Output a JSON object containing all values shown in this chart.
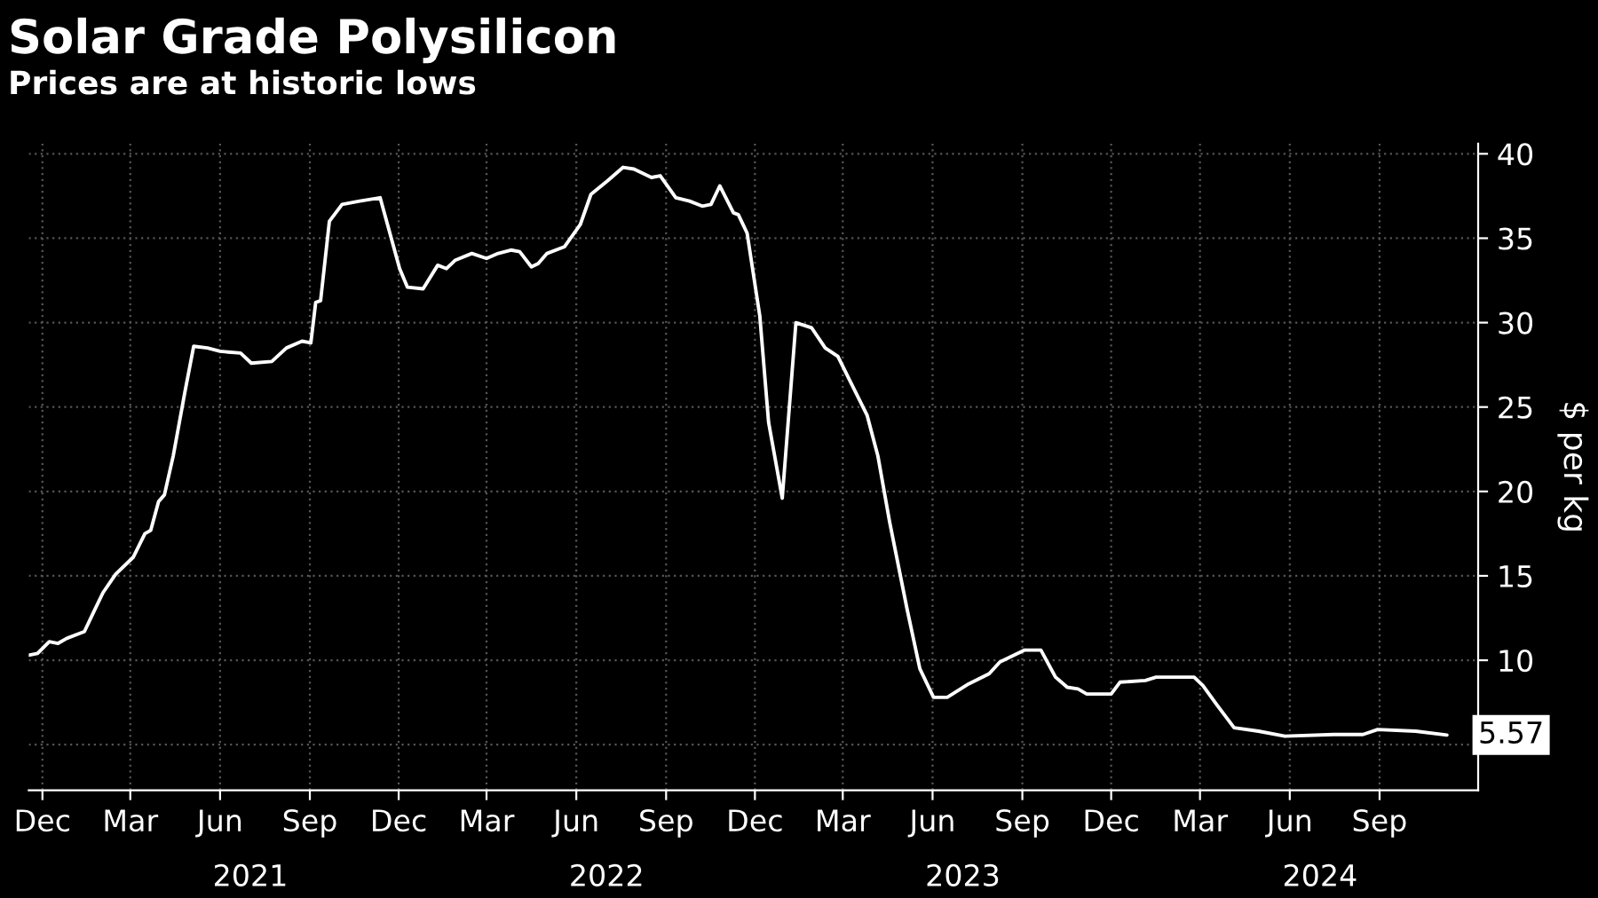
{
  "chart_data": {
    "type": "line",
    "title": "Solar Grade Polysilicon",
    "subtitle": "Prices are at historic lows",
    "ylabel": "$ per kg",
    "x": [
      "2020-11-17",
      "2020-11-26",
      "2020-12-08",
      "2020-12-17",
      "2020-12-26",
      "2021-01-13",
      "2021-01-22",
      "2021-02-01",
      "2021-02-14",
      "2021-03-04",
      "2021-03-16",
      "2021-03-22",
      "2021-03-30",
      "2021-04-05",
      "2021-04-14",
      "2021-04-26",
      "2021-05-05",
      "2021-05-19",
      "2021-06-01",
      "2021-06-22",
      "2021-07-03",
      "2021-07-24",
      "2021-08-08",
      "2021-08-24",
      "2021-09-02",
      "2021-09-07",
      "2021-09-12",
      "2021-09-21",
      "2021-10-04",
      "2021-10-22",
      "2021-11-12",
      "2021-12-02",
      "2021-12-10",
      "2021-12-26",
      "2022-01-10",
      "2022-01-19",
      "2022-01-28",
      "2022-02-14",
      "2022-03-01",
      "2022-03-13",
      "2022-03-26",
      "2022-04-04",
      "2022-04-16",
      "2022-04-23",
      "2022-05-02",
      "2022-05-20",
      "2022-06-05",
      "2022-06-16",
      "2022-07-03",
      "2022-07-19",
      "2022-07-30",
      "2022-08-17",
      "2022-08-26",
      "2022-09-11",
      "2022-09-25",
      "2022-10-08",
      "2022-10-17",
      "2022-10-26",
      "2022-11-09",
      "2022-11-14",
      "2022-11-23",
      "2022-12-06",
      "2022-12-15",
      "2022-12-29",
      "2023-01-12",
      "2023-01-28",
      "2023-02-11",
      "2023-02-24",
      "2023-03-08",
      "2023-03-26",
      "2023-04-06",
      "2023-04-18",
      "2023-05-06",
      "2023-05-19",
      "2023-06-02",
      "2023-06-16",
      "2023-07-08",
      "2023-07-29",
      "2023-08-09",
      "2023-09-03",
      "2023-09-20",
      "2023-10-05",
      "2023-10-17",
      "2023-10-28",
      "2023-11-06",
      "2023-12-01",
      "2023-12-10",
      "2024-01-05",
      "2024-01-16",
      "2024-02-24",
      "2024-03-04",
      "2024-03-19",
      "2024-04-05",
      "2024-04-30",
      "2024-05-27",
      "2024-07-16",
      "2024-08-15",
      "2024-08-30",
      "2024-10-08",
      "2024-11-09"
    ],
    "series": [
      {
        "color": "#ffffff",
        "values": [
          10.3,
          10.4,
          11.1,
          11.0,
          11.3,
          11.7,
          12.8,
          14.0,
          15.1,
          16.1,
          17.5,
          17.7,
          19.4,
          19.8,
          22.1,
          25.9,
          28.6,
          28.5,
          28.3,
          28.2,
          27.6,
          27.7,
          28.5,
          28.9,
          28.8,
          31.2,
          31.3,
          36.0,
          37.0,
          37.2,
          37.4,
          33.2,
          32.1,
          32.0,
          33.4,
          33.2,
          33.7,
          34.1,
          33.8,
          34.1,
          34.3,
          34.2,
          33.3,
          33.5,
          34.1,
          34.5,
          35.8,
          37.6,
          38.4,
          39.2,
          39.1,
          38.6,
          38.7,
          37.4,
          37.2,
          36.9,
          37.0,
          38.1,
          36.5,
          36.4,
          35.3,
          30.4,
          24.1,
          19.6,
          30.0,
          29.7,
          28.5,
          28.0,
          26.6,
          24.5,
          22.1,
          18.2,
          13.0,
          9.5,
          7.8,
          7.8,
          8.6,
          9.2,
          9.9,
          10.6,
          10.6,
          9.0,
          8.4,
          8.3,
          8.0,
          8.0,
          8.7,
          8.8,
          9.0,
          9.0,
          8.5,
          7.3,
          6.0,
          5.8,
          5.5,
          5.6,
          5.6,
          5.9,
          5.8,
          5.57
        ]
      }
    ],
    "xlim": [
      "2020-11-17",
      "2024-12-11"
    ],
    "xticks": [
      {
        "value": "2020-12-01",
        "label": "Dec"
      },
      {
        "value": "2021-03-01",
        "label": "Mar"
      },
      {
        "value": "2021-06-01",
        "label": "Jun"
      },
      {
        "value": "2021-09-01",
        "label": "Sep"
      },
      {
        "value": "2021-12-01",
        "label": "Dec"
      },
      {
        "value": "2022-03-01",
        "label": "Mar"
      },
      {
        "value": "2022-06-01",
        "label": "Jun"
      },
      {
        "value": "2022-09-01",
        "label": "Sep"
      },
      {
        "value": "2022-12-01",
        "label": "Dec"
      },
      {
        "value": "2023-03-01",
        "label": "Mar"
      },
      {
        "value": "2023-06-01",
        "label": "Jun"
      },
      {
        "value": "2023-09-01",
        "label": "Sep"
      },
      {
        "value": "2023-12-01",
        "label": "Dec"
      },
      {
        "value": "2024-03-01",
        "label": "Mar"
      },
      {
        "value": "2024-06-01",
        "label": "Jun"
      },
      {
        "value": "2024-09-01",
        "label": "Sep"
      }
    ],
    "x2lim": [
      "2020-11-17",
      "2024-12-11"
    ],
    "x2ticks": [
      {
        "value": "2021-07-02",
        "label": "2021"
      },
      {
        "value": "2022-07-02",
        "label": "2022"
      },
      {
        "value": "2023-07-02",
        "label": "2023"
      },
      {
        "value": "2024-07-02",
        "label": "2024"
      }
    ],
    "ylim": [
      2.3,
      40.6
    ],
    "yticks": [
      {
        "value": 5,
        "label": null
      },
      10,
      15,
      20,
      25,
      30,
      35,
      40
    ],
    "grid": true,
    "annotations": [
      {
        "text": "5.57",
        "x": "2024-11-09",
        "y": 5.57
      }
    ]
  }
}
